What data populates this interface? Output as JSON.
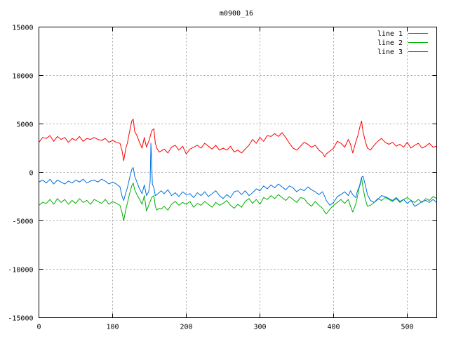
{
  "chart_data": {
    "type": "line",
    "title": "m0900_16",
    "xlabel": "",
    "ylabel": "",
    "xlim": [
      0,
      540
    ],
    "ylim": [
      -15000,
      15000
    ],
    "xticks": [
      0,
      100,
      200,
      300,
      400,
      500
    ],
    "yticks": [
      -15000,
      -10000,
      -5000,
      0,
      5000,
      10000,
      15000
    ],
    "grid": true,
    "legend_position": "top-right",
    "series": [
      {
        "name": "line 1",
        "color": "#ff0000",
        "x": [
          0,
          5,
          10,
          15,
          20,
          25,
          30,
          35,
          40,
          45,
          50,
          55,
          60,
          65,
          70,
          75,
          80,
          85,
          90,
          95,
          100,
          105,
          110,
          113,
          115,
          118,
          120,
          123,
          126,
          128,
          130,
          133,
          136,
          140,
          143,
          146,
          150,
          153,
          156,
          158,
          160,
          163,
          166,
          170,
          175,
          180,
          185,
          190,
          195,
          200,
          205,
          210,
          215,
          220,
          225,
          230,
          235,
          240,
          245,
          250,
          255,
          260,
          265,
          270,
          275,
          280,
          285,
          290,
          295,
          300,
          305,
          310,
          315,
          320,
          325,
          330,
          335,
          340,
          345,
          350,
          355,
          360,
          365,
          370,
          375,
          380,
          385,
          388,
          390,
          395,
          400,
          405,
          410,
          415,
          420,
          423,
          426,
          430,
          433,
          436,
          438,
          440,
          443,
          446,
          450,
          455,
          460,
          465,
          470,
          475,
          480,
          485,
          490,
          495,
          500,
          505,
          510,
          515,
          520,
          525,
          530,
          535,
          540
        ],
        "y": [
          3100,
          3600,
          3500,
          3800,
          3200,
          3700,
          3400,
          3600,
          3100,
          3500,
          3300,
          3700,
          3200,
          3500,
          3400,
          3600,
          3400,
          3300,
          3500,
          3100,
          3300,
          3100,
          3000,
          2200,
          1200,
          2500,
          3000,
          4200,
          5300,
          5500,
          4200,
          3800,
          3200,
          2500,
          3600,
          2600,
          3400,
          4300,
          4500,
          3000,
          2500,
          2100,
          2200,
          2400,
          2000,
          2600,
          2800,
          2300,
          2700,
          1900,
          2400,
          2600,
          2800,
          2500,
          3000,
          2700,
          2400,
          2800,
          2300,
          2500,
          2300,
          2700,
          2100,
          2300,
          2000,
          2400,
          2800,
          3400,
          3000,
          3600,
          3200,
          3800,
          3700,
          4000,
          3700,
          4100,
          3600,
          3000,
          2500,
          2300,
          2700,
          3100,
          2900,
          2600,
          2800,
          2300,
          2000,
          1600,
          1900,
          2200,
          2500,
          3200,
          3000,
          2600,
          3400,
          2900,
          2000,
          3100,
          3800,
          4800,
          5300,
          4200,
          3200,
          2500,
          2300,
          2800,
          3200,
          3500,
          3100,
          2900,
          3100,
          2700,
          2900,
          2600,
          3100,
          2500,
          2800,
          3000,
          2500,
          2700,
          3000,
          2600,
          2700
        ]
      },
      {
        "name": "line 2",
        "color": "#00b000",
        "x": [
          0,
          5,
          10,
          15,
          20,
          25,
          30,
          35,
          40,
          45,
          50,
          55,
          60,
          65,
          70,
          75,
          80,
          85,
          90,
          95,
          100,
          105,
          110,
          113,
          115,
          118,
          120,
          123,
          126,
          128,
          130,
          133,
          136,
          140,
          143,
          146,
          150,
          153,
          156,
          158,
          160,
          163,
          166,
          170,
          175,
          180,
          185,
          190,
          195,
          200,
          205,
          210,
          215,
          220,
          225,
          230,
          235,
          240,
          245,
          250,
          255,
          260,
          265,
          270,
          275,
          280,
          285,
          290,
          295,
          300,
          305,
          310,
          315,
          320,
          325,
          330,
          335,
          340,
          345,
          350,
          355,
          360,
          365,
          370,
          375,
          380,
          385,
          388,
          390,
          395,
          400,
          405,
          410,
          415,
          420,
          423,
          426,
          430,
          433,
          436,
          438,
          440,
          443,
          446,
          450,
          455,
          460,
          465,
          470,
          475,
          480,
          485,
          490,
          495,
          500,
          505,
          510,
          515,
          520,
          525,
          530,
          535,
          540
        ],
        "y": [
          -3400,
          -3100,
          -3200,
          -2800,
          -3300,
          -2700,
          -3100,
          -2800,
          -3300,
          -2900,
          -3200,
          -2700,
          -3100,
          -2900,
          -3300,
          -2800,
          -3000,
          -3200,
          -2800,
          -3300,
          -3000,
          -3200,
          -3400,
          -4200,
          -5000,
          -3800,
          -3200,
          -2200,
          -1400,
          -1100,
          -1800,
          -2300,
          -2700,
          -3300,
          -2400,
          -4000,
          -3200,
          -2600,
          -2400,
          -3500,
          -3900,
          -3700,
          -3800,
          -3500,
          -3900,
          -3300,
          -3000,
          -3400,
          -3100,
          -3300,
          -3000,
          -3600,
          -3200,
          -3400,
          -3000,
          -3300,
          -3600,
          -3100,
          -3400,
          -3200,
          -2900,
          -3400,
          -3700,
          -3300,
          -3600,
          -3000,
          -2700,
          -3200,
          -2800,
          -3300,
          -2600,
          -2800,
          -2400,
          -2700,
          -2300,
          -2600,
          -2900,
          -2500,
          -2800,
          -3100,
          -2600,
          -2700,
          -3200,
          -3500,
          -3000,
          -3400,
          -3700,
          -4100,
          -4300,
          -3800,
          -3400,
          -3100,
          -2800,
          -3200,
          -2800,
          -3500,
          -4100,
          -3300,
          -2300,
          -1100,
          -600,
          -1600,
          -2800,
          -3500,
          -3400,
          -3100,
          -2700,
          -2900,
          -2600,
          -2800,
          -3000,
          -2700,
          -3100,
          -2800,
          -2600,
          -2900,
          -3100,
          -2800,
          -3100,
          -2700,
          -2900,
          -2500,
          -2700
        ]
      },
      {
        "name": "line 3",
        "color": "#0070e0",
        "x": [
          0,
          5,
          10,
          15,
          20,
          25,
          30,
          35,
          40,
          45,
          50,
          55,
          60,
          65,
          70,
          75,
          80,
          85,
          90,
          95,
          100,
          105,
          110,
          113,
          115,
          118,
          120,
          123,
          126,
          128,
          130,
          133,
          136,
          140,
          143,
          146,
          149,
          151,
          152,
          153,
          154,
          156,
          158,
          160,
          163,
          166,
          170,
          175,
          180,
          185,
          190,
          195,
          200,
          205,
          210,
          215,
          220,
          225,
          230,
          235,
          240,
          245,
          250,
          255,
          260,
          265,
          270,
          275,
          280,
          285,
          290,
          295,
          300,
          305,
          310,
          315,
          320,
          325,
          330,
          335,
          340,
          345,
          350,
          355,
          360,
          365,
          370,
          375,
          380,
          385,
          388,
          390,
          395,
          400,
          405,
          410,
          415,
          420,
          423,
          426,
          430,
          433,
          436,
          438,
          440,
          443,
          446,
          450,
          455,
          460,
          465,
          470,
          475,
          480,
          485,
          490,
          495,
          500,
          505,
          510,
          515,
          520,
          525,
          530,
          535,
          540
        ],
        "y": [
          -1000,
          -800,
          -1100,
          -700,
          -1200,
          -800,
          -1000,
          -1200,
          -900,
          -1100,
          -800,
          -1000,
          -700,
          -1100,
          -900,
          -800,
          -1000,
          -700,
          -900,
          -1200,
          -1000,
          -1200,
          -1500,
          -2500,
          -2900,
          -2100,
          -1600,
          -600,
          300,
          500,
          -400,
          -1000,
          -1600,
          -2200,
          -1300,
          -2400,
          -2000,
          -1000,
          3000,
          1000,
          -1200,
          -1600,
          -2400,
          -2300,
          -2100,
          -1900,
          -2200,
          -1800,
          -2400,
          -2100,
          -2500,
          -2000,
          -2300,
          -2200,
          -2600,
          -2100,
          -2400,
          -2000,
          -2500,
          -2200,
          -1900,
          -2400,
          -2700,
          -2300,
          -2600,
          -2000,
          -1900,
          -2300,
          -1900,
          -2400,
          -2100,
          -1700,
          -1900,
          -1400,
          -1700,
          -1300,
          -1600,
          -1200,
          -1500,
          -1800,
          -1400,
          -1600,
          -2000,
          -1700,
          -1900,
          -1500,
          -1800,
          -2000,
          -2300,
          -2000,
          -2500,
          -2900,
          -3400,
          -3100,
          -2500,
          -2300,
          -2000,
          -2400,
          -1900,
          -2300,
          -2600,
          -1800,
          -1300,
          -500,
          -400,
          -1300,
          -2300,
          -2900,
          -3100,
          -2800,
          -2400,
          -2500,
          -2700,
          -2900,
          -2600,
          -3000,
          -2800,
          -3200,
          -2900,
          -3500,
          -3300,
          -3000,
          -2900,
          -3100,
          -2800,
          -3100
        ]
      }
    ]
  }
}
